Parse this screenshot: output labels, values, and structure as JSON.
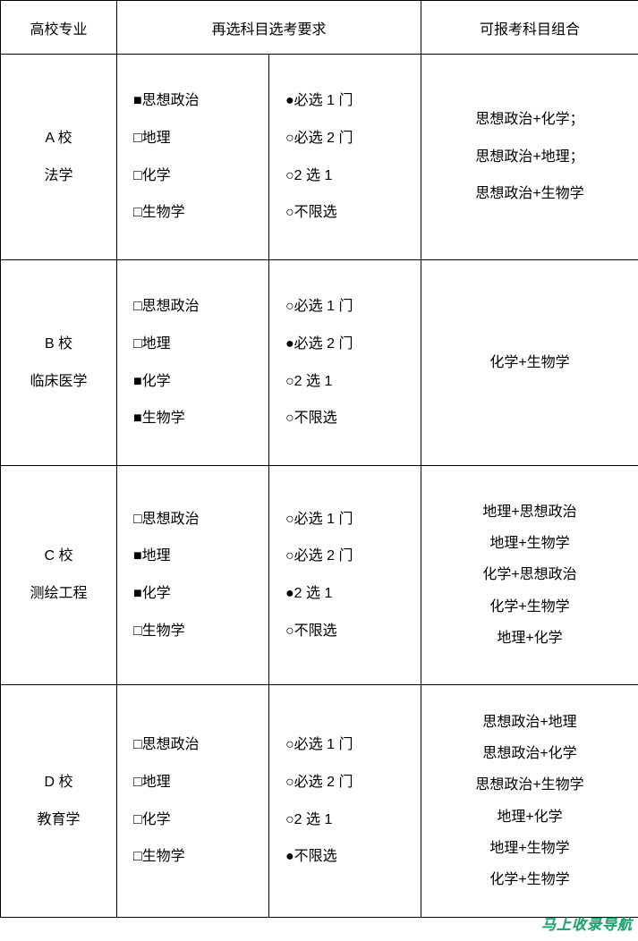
{
  "header": {
    "major": "高校专业",
    "requirement": "再选科目选考要求",
    "combo": "可报考科目组合"
  },
  "markers": {
    "filled_square": "■",
    "empty_square": "□",
    "filled_circle": "●",
    "empty_circle": "○"
  },
  "subjects": [
    "思想政治",
    "地理",
    "化学",
    "生物学"
  ],
  "req_options": [
    "必选 1 门",
    "必选 2 门",
    "2 选 1",
    "不限选"
  ],
  "rows": [
    {
      "school": "A 校",
      "major": "法学",
      "subject_marks": [
        "filled_square",
        "empty_square",
        "empty_square",
        "empty_square"
      ],
      "req_marks": [
        "filled_circle",
        "empty_circle",
        "empty_circle",
        "empty_circle"
      ],
      "combos": [
        "思想政治+化学；",
        "思想政治+地理；",
        "思想政治+生物学"
      ]
    },
    {
      "school": "B 校",
      "major": "临床医学",
      "subject_marks": [
        "empty_square",
        "empty_square",
        "filled_square",
        "filled_square"
      ],
      "req_marks": [
        "empty_circle",
        "filled_circle",
        "empty_circle",
        "empty_circle"
      ],
      "combos": [
        "化学+生物学"
      ]
    },
    {
      "school": "C 校",
      "major": "测绘工程",
      "subject_marks": [
        "empty_square",
        "filled_square",
        "filled_square",
        "empty_square"
      ],
      "req_marks": [
        "empty_circle",
        "empty_circle",
        "filled_circle",
        "empty_circle"
      ],
      "combos": [
        "地理+思想政治",
        "地理+生物学",
        "化学+思想政治",
        "化学+生物学",
        "地理+化学"
      ]
    },
    {
      "school": "D 校",
      "major": "教育学",
      "subject_marks": [
        "empty_square",
        "empty_square",
        "empty_square",
        "empty_square"
      ],
      "req_marks": [
        "empty_circle",
        "empty_circle",
        "empty_circle",
        "filled_circle"
      ],
      "combos": [
        "思想政治+地理",
        "思想政治+化学",
        "思想政治+生物学",
        "地理+化学",
        "地理+生物学",
        "化学+生物学"
      ]
    }
  ],
  "watermark": "马上收录导航",
  "style": {
    "font_size_body": 16,
    "font_size_header": 17,
    "border_color": "#000000",
    "background": "#ffffff",
    "text_color": "#000000",
    "watermark_color": "#1aa36b"
  }
}
